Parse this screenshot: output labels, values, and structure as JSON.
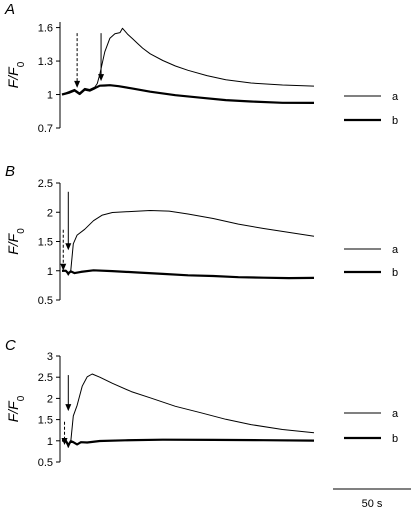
{
  "chart_data": [
    {
      "type": "line",
      "panel_label": "A",
      "ylabel": "F/F",
      "ylabel_sub": "0",
      "ylim": [
        0.7,
        1.65
      ],
      "yticks": [
        0.7,
        1,
        1.3,
        1.6
      ],
      "ytick_labels": [
        "0.7",
        "1",
        "1.3",
        "1.6"
      ],
      "xlim": [
        0,
        200
      ],
      "series": [
        {
          "name": "a",
          "stroke_width": 1,
          "x": [
            0,
            6,
            10,
            14,
            18,
            22,
            26,
            28,
            30,
            34,
            38,
            42,
            46,
            48,
            52,
            56,
            60,
            64,
            70,
            80,
            90,
            100,
            115,
            130,
            150,
            175,
            200
          ],
          "y": [
            1.0,
            1.03,
            1.05,
            1.02,
            1.06,
            1.05,
            1.07,
            1.1,
            1.18,
            1.38,
            1.5,
            1.54,
            1.55,
            1.59,
            1.54,
            1.5,
            1.46,
            1.42,
            1.37,
            1.31,
            1.26,
            1.22,
            1.17,
            1.13,
            1.1,
            1.08,
            1.07
          ]
        },
        {
          "name": "b",
          "stroke_width": 2.2,
          "x": [
            0,
            6,
            10,
            14,
            18,
            22,
            26,
            30,
            34,
            38,
            45,
            55,
            70,
            90,
            110,
            130,
            150,
            175,
            200
          ],
          "y": [
            1.0,
            1.02,
            1.04,
            1.01,
            1.05,
            1.04,
            1.06,
            1.08,
            1.08,
            1.08,
            1.07,
            1.05,
            1.02,
            0.99,
            0.97,
            0.95,
            0.94,
            0.93,
            0.93
          ]
        }
      ],
      "arrows": [
        {
          "style": "dashed",
          "x": 12,
          "y_top": 1.55,
          "y_tip": 1.06
        },
        {
          "style": "solid",
          "x": 31,
          "y_top": 1.55,
          "y_tip": 1.12
        }
      ]
    },
    {
      "type": "line",
      "panel_label": "B",
      "ylabel": "F/F",
      "ylabel_sub": "0",
      "ylim": [
        0.5,
        2.5
      ],
      "yticks": [
        0.5,
        1,
        1.5,
        2,
        2.5
      ],
      "ytick_labels": [
        "0.5",
        "1",
        "1.5",
        "2",
        "2.5"
      ],
      "xlim": [
        0,
        200
      ],
      "series": [
        {
          "name": "a",
          "stroke_width": 1,
          "x": [
            0,
            3,
            5,
            7,
            9,
            12,
            18,
            25,
            32,
            40,
            55,
            70,
            85,
            100,
            120,
            140,
            160,
            180,
            200
          ],
          "y": [
            1.0,
            1.0,
            0.92,
            1.0,
            1.45,
            1.6,
            1.7,
            1.85,
            1.95,
            2.0,
            2.02,
            2.04,
            2.03,
            1.98,
            1.9,
            1.8,
            1.72,
            1.65,
            1.58
          ]
        },
        {
          "name": "b",
          "stroke_width": 2.2,
          "x": [
            0,
            3,
            5,
            7,
            10,
            15,
            25,
            40,
            60,
            80,
            100,
            120,
            140,
            160,
            180,
            200
          ],
          "y": [
            1.0,
            1.0,
            0.95,
            0.98,
            0.95,
            0.97,
            1.0,
            0.99,
            0.97,
            0.95,
            0.93,
            0.92,
            0.9,
            0.89,
            0.88,
            0.88
          ]
        }
      ],
      "arrows": [
        {
          "style": "dashed",
          "x": 1,
          "y_top": 1.7,
          "y_tip": 1.0
        },
        {
          "style": "solid",
          "x": 5,
          "y_top": 2.35,
          "y_tip": 1.35
        }
      ]
    },
    {
      "type": "line",
      "panel_label": "C",
      "ylabel": "F/F",
      "ylabel_sub": "0",
      "ylim": [
        0.5,
        3.0
      ],
      "yticks": [
        0.5,
        1,
        1.5,
        2,
        2.5,
        3
      ],
      "ytick_labels": [
        "0.5",
        "1",
        "1.5",
        "2",
        "2.5",
        "3"
      ],
      "xlim": [
        0,
        200
      ],
      "series": [
        {
          "name": "a",
          "stroke_width": 1,
          "x": [
            0,
            3,
            5,
            7,
            9,
            12,
            16,
            20,
            24,
            30,
            40,
            55,
            70,
            90,
            110,
            130,
            150,
            175,
            200
          ],
          "y": [
            1.0,
            1.0,
            0.85,
            1.0,
            1.6,
            1.85,
            2.3,
            2.52,
            2.58,
            2.5,
            2.35,
            2.15,
            2.0,
            1.8,
            1.65,
            1.5,
            1.38,
            1.27,
            1.2
          ]
        },
        {
          "name": "b",
          "stroke_width": 2.2,
          "x": [
            0,
            3,
            5,
            7,
            9,
            12,
            15,
            20,
            30,
            50,
            80,
            120,
            160,
            200
          ],
          "y": [
            1.0,
            1.0,
            0.9,
            1.0,
            0.98,
            0.93,
            0.98,
            0.97,
            1.0,
            1.01,
            1.02,
            1.01,
            1.0,
            0.99
          ]
        }
      ],
      "arrows": [
        {
          "style": "dashed",
          "x": 2,
          "y_top": 1.45,
          "y_tip": 0.9
        },
        {
          "style": "solid",
          "x": 5,
          "y_top": 2.55,
          "y_tip": 1.7
        }
      ]
    }
  ],
  "legend": {
    "a": "a",
    "b": "b"
  },
  "scale_bar": {
    "label": "50 s"
  }
}
